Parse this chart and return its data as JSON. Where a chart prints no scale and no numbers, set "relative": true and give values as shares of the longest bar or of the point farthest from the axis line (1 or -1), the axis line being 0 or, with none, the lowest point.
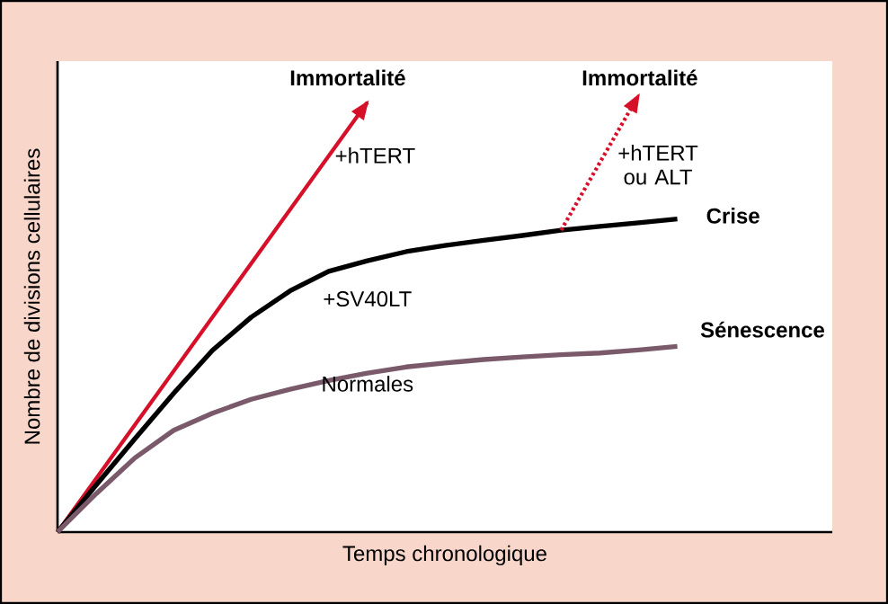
{
  "chart_data": {
    "type": "line",
    "relative": true,
    "xlabel": "Temps chronologique",
    "ylabel": "Nombre de divisions cellulaires",
    "tick_labels": false,
    "categories": [
      null,
      null,
      null,
      null,
      null,
      null,
      null,
      null,
      null,
      null,
      null,
      null,
      null,
      null,
      null,
      null,
      null,
      null,
      null,
      null,
      null
    ],
    "series": [
      {
        "color": "#d7102a",
        "values": [
          0,
          0.123,
          0.246,
          0.369,
          0.492,
          0.615,
          0.738,
          0.861,
          0.984,
          null,
          null,
          null,
          null,
          null,
          null,
          null,
          null,
          null,
          null,
          null,
          null
        ]
      },
      {
        "color": "#000000",
        "values": [
          0,
          0.108,
          0.214,
          0.318,
          0.416,
          0.492,
          0.552,
          0.597,
          0.621,
          0.642,
          0.656,
          0.668,
          0.679,
          0.691,
          0.7,
          0.708,
          0.717,
          null,
          null,
          null,
          null
        ]
      },
      {
        "color": "#7a5a6a",
        "values": [
          0,
          0.088,
          0.17,
          0.233,
          0.272,
          0.304,
          0.327,
          0.347,
          0.364,
          0.378,
          0.387,
          0.395,
          0.401,
          0.406,
          0.41,
          0.417,
          0.425,
          null,
          null,
          null,
          null
        ]
      },
      {
        "color": "#d7102a",
        "line_style": "dotted",
        "values": [
          null,
          null,
          null,
          null,
          null,
          null,
          null,
          null,
          null,
          null,
          null,
          null,
          null,
          0.691,
          0.846,
          1,
          null,
          null,
          null,
          null,
          null
        ]
      }
    ],
    "annotations": [
      "**Immortalité**",
      "**Immortalité**",
      "+hTERT",
      "+hTERT ou ALT",
      "**Crise**",
      "+SV40LT",
      "Normales",
      "**Sénescence**"
    ]
  }
}
